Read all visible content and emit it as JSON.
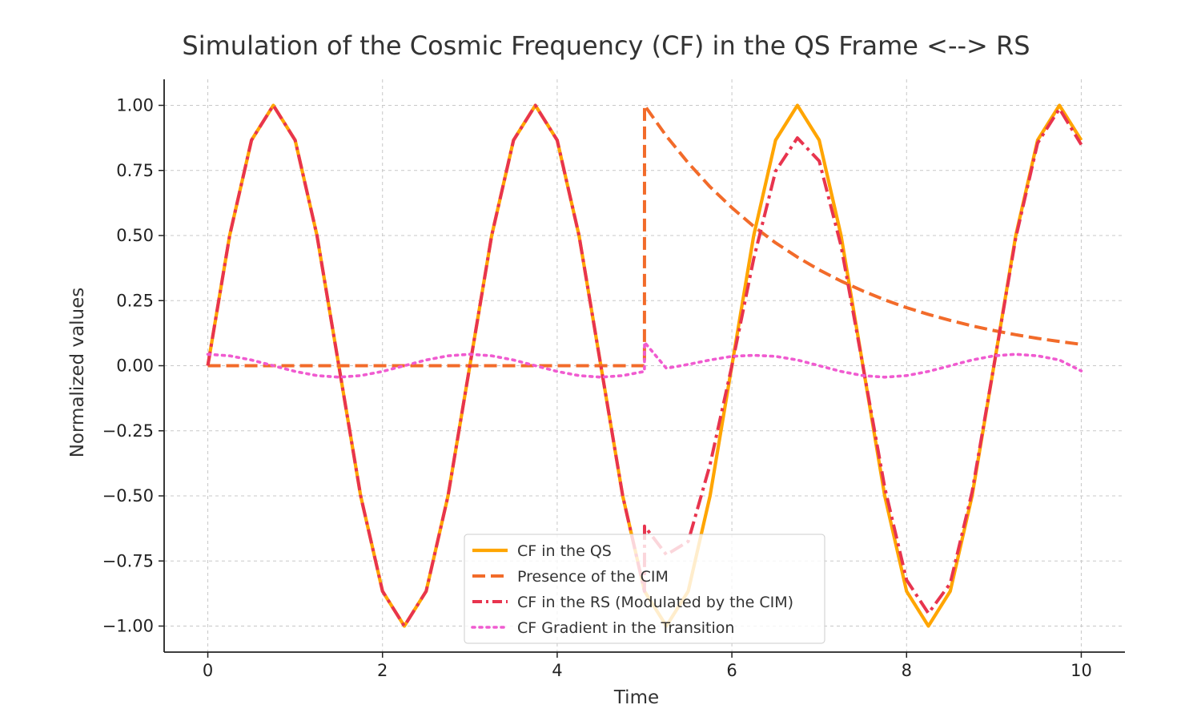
{
  "chart_data": {
    "type": "line",
    "title": "Simulation of the Cosmic Frequency (CF) in the QS Frame <--> RS",
    "xlabel": "Time",
    "ylabel": "Normalized values",
    "xlim": [
      -0.5,
      10.5
    ],
    "ylim": [
      -1.1,
      1.1
    ],
    "xticks": [
      0,
      2,
      4,
      6,
      8,
      10
    ],
    "xtick_labels": [
      "0",
      "2",
      "4",
      "6",
      "8",
      "10"
    ],
    "yticks": [
      1.0,
      0.75,
      0.5,
      0.25,
      0.0,
      -0.25,
      -0.5,
      -0.75,
      -1.0
    ],
    "ytick_labels": [
      "1.00",
      "0.75",
      "0.50",
      "0.25",
      "0.00",
      "−0.25",
      "−0.50",
      "−0.75",
      "−1.00"
    ],
    "grid": true,
    "legend_position": "bottom-center",
    "series": [
      {
        "name": "CF in the QS",
        "color": "#FFA500",
        "style": "solid",
        "x": [
          0,
          0.25,
          0.5,
          0.75,
          1.0,
          1.25,
          1.5,
          1.75,
          2.0,
          2.25,
          2.5,
          2.75,
          3.0,
          3.25,
          3.5,
          3.75,
          4.0,
          4.25,
          4.5,
          4.75,
          5.0,
          5.25,
          5.5,
          5.75,
          6.0,
          6.25,
          6.5,
          6.75,
          7.0,
          7.25,
          7.5,
          7.75,
          8.0,
          8.25,
          8.5,
          8.75,
          9.0,
          9.25,
          9.5,
          9.75,
          10.0
        ],
        "values": [
          0,
          0.5,
          0.866,
          1.0,
          0.866,
          0.5,
          0,
          -0.5,
          -0.866,
          -1.0,
          -0.866,
          -0.5,
          0,
          0.5,
          0.866,
          1.0,
          0.866,
          0.5,
          0,
          -0.5,
          -0.866,
          -1.0,
          -0.866,
          -0.5,
          0,
          0.5,
          0.866,
          1.0,
          0.866,
          0.5,
          0,
          -0.5,
          -0.866,
          -1.0,
          -0.866,
          -0.5,
          0,
          0.5,
          0.866,
          1.0,
          0.866
        ]
      },
      {
        "name": "Presence of the CIM",
        "color": "#F26B2A",
        "style": "dashed",
        "x": [
          0,
          4.999,
          5.0,
          5.25,
          5.5,
          5.75,
          6.0,
          6.25,
          6.5,
          6.75,
          7.0,
          7.25,
          7.5,
          7.75,
          8.0,
          8.25,
          8.5,
          8.75,
          9.0,
          9.25,
          9.5,
          9.75,
          10.0
        ],
        "values": [
          0,
          0,
          1.0,
          0.882,
          0.779,
          0.687,
          0.607,
          0.535,
          0.472,
          0.417,
          0.368,
          0.325,
          0.287,
          0.253,
          0.223,
          0.197,
          0.174,
          0.153,
          0.135,
          0.119,
          0.105,
          0.093,
          0.082
        ]
      },
      {
        "name": "CF in the RS (Modulated by the CIM)",
        "color": "#E8344E",
        "style": "dashdot",
        "x": [
          0,
          0.25,
          0.5,
          0.75,
          1.0,
          1.25,
          1.5,
          1.75,
          2.0,
          2.25,
          2.5,
          2.75,
          3.0,
          3.25,
          3.5,
          3.75,
          4.0,
          4.25,
          4.5,
          4.75,
          4.999,
          5.0,
          5.25,
          5.5,
          5.75,
          6.0,
          6.25,
          6.5,
          6.75,
          7.0,
          7.25,
          7.5,
          7.75,
          8.0,
          8.25,
          8.5,
          8.75,
          9.0,
          9.25,
          9.5,
          9.75,
          10.0
        ],
        "values": [
          0,
          0.5,
          0.866,
          1.0,
          0.866,
          0.5,
          0,
          -0.5,
          -0.866,
          -1.0,
          -0.866,
          -0.5,
          0,
          0.5,
          0.866,
          1.0,
          0.866,
          0.5,
          0,
          -0.5,
          -0.866,
          -0.616,
          -0.726,
          -0.675,
          -0.38,
          0,
          0.411,
          0.747,
          0.875,
          0.786,
          0.46,
          0,
          -0.468,
          -0.823,
          -0.951,
          -0.836,
          -0.485,
          0,
          0.491,
          0.855,
          0.987,
          0.849
        ]
      },
      {
        "name": "CF Gradient in the Transition",
        "color": "#F05BD0",
        "style": "dotted",
        "x": [
          0,
          0.25,
          0.5,
          0.75,
          1.0,
          1.25,
          1.5,
          1.75,
          2.0,
          2.25,
          2.5,
          2.75,
          3.0,
          3.25,
          3.5,
          3.75,
          4.0,
          4.25,
          4.5,
          4.75,
          4.999,
          5.0,
          5.25,
          5.5,
          5.75,
          6.0,
          6.25,
          6.5,
          6.75,
          7.0,
          7.25,
          7.5,
          7.75,
          8.0,
          8.25,
          8.5,
          8.75,
          9.0,
          9.25,
          9.5,
          9.75,
          10.0
        ],
        "values": [
          0.044,
          0.038,
          0.022,
          0,
          -0.022,
          -0.038,
          -0.044,
          -0.038,
          -0.022,
          0,
          0.022,
          0.038,
          0.044,
          0.038,
          0.022,
          0,
          -0.022,
          -0.038,
          -0.044,
          -0.038,
          -0.022,
          0.09,
          -0.01,
          0.005,
          0.022,
          0.036,
          0.04,
          0.036,
          0.022,
          0,
          -0.022,
          -0.038,
          -0.044,
          -0.038,
          -0.022,
          0,
          0.022,
          0.038,
          0.044,
          0.038,
          0.022,
          -0.02
        ]
      }
    ]
  }
}
